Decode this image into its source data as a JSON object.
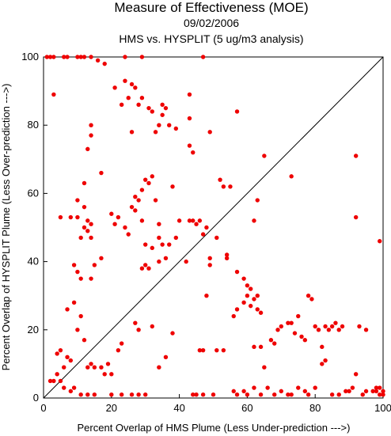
{
  "chart_data": {
    "type": "scatter",
    "title": "Measure of Effectiveness (MOE)",
    "subtitle": "09/02/2006",
    "subtitle2": "HMS vs. HYSPLIT  (5 ug/m3 analysis)",
    "xlabel": "Percent Overlap of HMS Plume (Less Under-prediction --->)",
    "ylabel": "Percent Overlap of HYSPLIT Plume (Less Over-prediction --->)",
    "xlim": [
      0,
      100
    ],
    "ylim": [
      0,
      100
    ],
    "xticks": [
      "0",
      "20",
      "40",
      "60",
      "80",
      "100"
    ],
    "yticks": [
      "0",
      "20",
      "40",
      "60",
      "80",
      "100"
    ],
    "grid": false,
    "point_color": "#ee0000",
    "reference_line": "y = x",
    "points": [
      [
        1,
        100
      ],
      [
        2,
        100
      ],
      [
        3,
        100
      ],
      [
        6,
        100
      ],
      [
        7,
        100
      ],
      [
        10,
        100
      ],
      [
        11,
        100
      ],
      [
        12,
        100
      ],
      [
        14,
        100
      ],
      [
        16,
        99
      ],
      [
        18,
        98
      ],
      [
        24,
        100
      ],
      [
        29,
        100
      ],
      [
        3,
        89
      ],
      [
        21,
        91
      ],
      [
        23,
        86
      ],
      [
        24,
        93
      ],
      [
        25,
        88
      ],
      [
        26,
        92
      ],
      [
        26,
        78
      ],
      [
        27,
        91
      ],
      [
        28,
        86
      ],
      [
        29,
        88
      ],
      [
        31,
        85
      ],
      [
        32,
        84
      ],
      [
        33,
        78
      ],
      [
        34,
        80
      ],
      [
        35,
        86
      ],
      [
        35,
        83
      ],
      [
        36,
        85
      ],
      [
        37,
        80
      ],
      [
        39,
        79
      ],
      [
        43,
        89
      ],
      [
        43,
        82
      ],
      [
        43,
        74
      ],
      [
        44,
        72
      ],
      [
        47,
        100
      ],
      [
        49,
        78
      ],
      [
        57,
        84
      ],
      [
        65,
        71
      ],
      [
        14,
        80
      ],
      [
        14,
        77
      ],
      [
        13,
        73
      ],
      [
        12,
        63
      ],
      [
        17,
        66
      ],
      [
        10,
        58
      ],
      [
        10,
        53
      ],
      [
        5,
        53
      ],
      [
        8,
        53
      ],
      [
        12,
        56
      ],
      [
        13,
        52
      ],
      [
        14,
        51
      ],
      [
        12,
        50
      ],
      [
        13,
        49
      ],
      [
        14,
        47
      ],
      [
        11,
        47
      ],
      [
        9,
        39
      ],
      [
        10,
        37
      ],
      [
        11,
        35
      ],
      [
        14,
        35
      ],
      [
        15,
        39
      ],
      [
        17,
        41
      ],
      [
        20,
        54
      ],
      [
        21,
        51
      ],
      [
        22,
        53
      ],
      [
        24,
        50
      ],
      [
        25,
        48
      ],
      [
        26,
        56
      ],
      [
        27,
        55
      ],
      [
        27,
        59
      ],
      [
        28,
        58
      ],
      [
        29,
        61
      ],
      [
        30,
        64
      ],
      [
        31,
        63
      ],
      [
        32,
        65
      ],
      [
        33,
        58
      ],
      [
        34,
        51
      ],
      [
        34,
        47
      ],
      [
        35,
        45
      ],
      [
        36,
        41
      ],
      [
        37,
        45
      ],
      [
        38,
        62
      ],
      [
        39,
        47
      ],
      [
        40,
        52
      ],
      [
        29,
        52
      ],
      [
        30,
        45
      ],
      [
        32,
        44
      ],
      [
        31,
        38
      ],
      [
        29,
        38
      ],
      [
        30,
        39
      ],
      [
        34,
        40
      ],
      [
        42,
        40
      ],
      [
        43,
        52
      ],
      [
        44,
        52
      ],
      [
        45,
        51
      ],
      [
        46,
        52
      ],
      [
        47,
        48
      ],
      [
        48,
        50
      ],
      [
        49,
        41
      ],
      [
        49,
        39
      ],
      [
        51,
        47
      ],
      [
        52,
        64
      ],
      [
        53,
        62
      ],
      [
        55,
        62
      ],
      [
        54,
        42
      ],
      [
        54,
        41
      ],
      [
        57,
        37
      ],
      [
        59,
        35
      ],
      [
        60,
        33
      ],
      [
        61,
        32
      ],
      [
        62,
        52
      ],
      [
        63,
        58
      ],
      [
        73,
        65
      ],
      [
        92,
        71
      ],
      [
        92,
        53
      ],
      [
        99,
        46
      ],
      [
        2,
        5
      ],
      [
        3,
        5
      ],
      [
        4,
        13
      ],
      [
        4,
        7
      ],
      [
        5,
        14
      ],
      [
        6,
        9
      ],
      [
        7,
        26
      ],
      [
        7,
        12
      ],
      [
        8,
        11
      ],
      [
        9,
        28
      ],
      [
        10,
        20
      ],
      [
        11,
        24
      ],
      [
        12,
        17
      ],
      [
        13,
        9
      ],
      [
        14,
        10
      ],
      [
        15,
        9
      ],
      [
        17,
        9
      ],
      [
        18,
        7
      ],
      [
        19,
        10
      ],
      [
        20,
        7
      ],
      [
        22,
        14
      ],
      [
        23,
        16
      ],
      [
        27,
        22
      ],
      [
        28,
        20
      ],
      [
        32,
        21
      ],
      [
        34,
        9
      ],
      [
        36,
        12
      ],
      [
        38,
        19
      ],
      [
        5,
        5
      ],
      [
        6,
        3
      ],
      [
        8,
        2
      ],
      [
        9,
        3
      ],
      [
        11,
        1
      ],
      [
        13,
        1
      ],
      [
        15,
        1
      ],
      [
        20,
        1
      ],
      [
        23,
        1
      ],
      [
        26,
        1
      ],
      [
        28,
        1
      ],
      [
        30,
        1
      ],
      [
        44,
        1
      ],
      [
        45,
        1
      ],
      [
        47,
        1
      ],
      [
        50,
        1
      ],
      [
        48,
        30
      ],
      [
        56,
        24
      ],
      [
        57,
        26
      ],
      [
        59,
        28
      ],
      [
        60,
        30
      ],
      [
        61,
        27
      ],
      [
        62,
        29
      ],
      [
        63,
        30
      ],
      [
        63,
        26
      ],
      [
        64,
        25
      ],
      [
        62,
        15
      ],
      [
        64,
        15
      ],
      [
        65,
        9
      ],
      [
        67,
        17
      ],
      [
        68,
        16
      ],
      [
        69,
        20
      ],
      [
        70,
        21
      ],
      [
        72,
        22
      ],
      [
        73,
        22
      ],
      [
        74,
        19
      ],
      [
        75,
        24
      ],
      [
        76,
        18
      ],
      [
        77,
        17
      ],
      [
        78,
        30
      ],
      [
        79,
        29
      ],
      [
        80,
        21
      ],
      [
        81,
        20
      ],
      [
        82,
        15
      ],
      [
        83,
        21
      ],
      [
        84,
        20
      ],
      [
        85,
        21
      ],
      [
        86,
        22
      ],
      [
        87,
        20
      ],
      [
        88,
        21
      ],
      [
        90,
        2
      ],
      [
        91,
        3
      ],
      [
        92,
        7
      ],
      [
        93,
        21
      ],
      [
        95,
        20
      ],
      [
        97,
        2
      ],
      [
        98,
        3
      ],
      [
        98,
        2
      ],
      [
        99,
        1
      ],
      [
        99,
        3
      ],
      [
        100,
        2
      ],
      [
        100,
        1
      ],
      [
        46,
        14
      ],
      [
        47,
        14
      ],
      [
        51,
        14
      ],
      [
        53,
        14
      ],
      [
        56,
        2
      ],
      [
        57,
        1
      ],
      [
        59,
        2
      ],
      [
        60,
        1
      ],
      [
        62,
        3
      ],
      [
        64,
        1
      ],
      [
        66,
        3
      ],
      [
        68,
        1
      ],
      [
        70,
        2
      ],
      [
        72,
        1
      ],
      [
        73,
        1
      ],
      [
        75,
        3
      ],
      [
        77,
        2
      ],
      [
        78,
        1
      ],
      [
        80,
        3
      ],
      [
        82,
        10
      ],
      [
        83,
        11
      ],
      [
        85,
        1
      ],
      [
        87,
        1
      ],
      [
        89,
        2
      ],
      [
        94,
        1
      ],
      [
        95,
        2
      ]
    ]
  }
}
